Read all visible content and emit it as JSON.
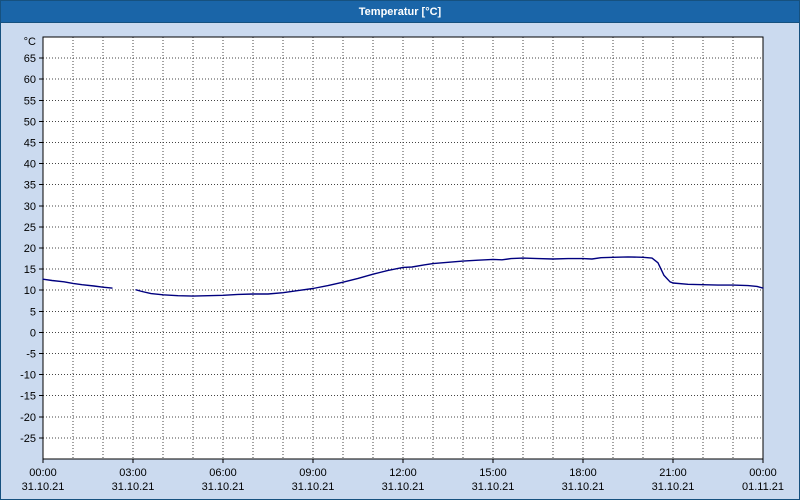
{
  "window": {
    "title": "Temperatur [°C]"
  },
  "colors": {
    "titlebar_bg": "#1a65a8",
    "titlebar_fg": "#ffffff",
    "panel_bg": "#cbdaef",
    "frame_border": "#16517f",
    "plot_bg": "#ffffff",
    "grid": "#444444",
    "axis": "#000000",
    "line": "#00007f",
    "tick_text": "#000000"
  },
  "chart_data": {
    "type": "line",
    "title": "Temperatur [°C]",
    "xlabel": "",
    "ylabel": "°C",
    "grid": true,
    "legend": "none",
    "ylim": [
      -30,
      70
    ],
    "xlim_hours": [
      0,
      24
    ],
    "yticks": [
      65,
      60,
      55,
      50,
      45,
      40,
      35,
      30,
      25,
      20,
      15,
      10,
      5,
      0,
      -5,
      -10,
      -15,
      -20,
      -25
    ],
    "xticks": [
      {
        "time": "00:00",
        "date": "31.10.21",
        "hour": 0
      },
      {
        "time": "03:00",
        "date": "31.10.21",
        "hour": 3
      },
      {
        "time": "06:00",
        "date": "31.10.21",
        "hour": 6
      },
      {
        "time": "09:00",
        "date": "31.10.21",
        "hour": 9
      },
      {
        "time": "12:00",
        "date": "31.10.21",
        "hour": 12
      },
      {
        "time": "15:00",
        "date": "31.10.21",
        "hour": 15
      },
      {
        "time": "18:00",
        "date": "31.10.21",
        "hour": 18
      },
      {
        "time": "21:00",
        "date": "31.10.21",
        "hour": 21
      },
      {
        "time": "00:00",
        "date": "01.11.21",
        "hour": 24
      }
    ],
    "series": [
      {
        "name": "Temperatur",
        "unit": "°C",
        "segments": [
          [
            [
              0.0,
              12.6
            ],
            [
              0.3,
              12.3
            ],
            [
              0.7,
              12.0
            ],
            [
              1.0,
              11.6
            ],
            [
              1.3,
              11.3
            ],
            [
              1.7,
              11.0
            ],
            [
              2.0,
              10.7
            ],
            [
              2.3,
              10.5
            ]
          ],
          [
            [
              3.1,
              10.1
            ],
            [
              3.3,
              9.7
            ],
            [
              3.6,
              9.2
            ],
            [
              4.0,
              8.9
            ],
            [
              4.5,
              8.7
            ],
            [
              5.0,
              8.6
            ],
            [
              5.5,
              8.7
            ],
            [
              6.0,
              8.8
            ],
            [
              6.5,
              9.0
            ],
            [
              7.0,
              9.1
            ],
            [
              7.5,
              9.1
            ],
            [
              8.0,
              9.4
            ],
            [
              8.5,
              9.9
            ],
            [
              9.0,
              10.4
            ],
            [
              9.5,
              11.1
            ],
            [
              10.0,
              11.9
            ],
            [
              10.5,
              12.8
            ],
            [
              11.0,
              13.8
            ],
            [
              11.5,
              14.7
            ],
            [
              12.0,
              15.4
            ],
            [
              12.3,
              15.5
            ],
            [
              12.7,
              16.0
            ],
            [
              13.0,
              16.3
            ],
            [
              13.5,
              16.6
            ],
            [
              14.0,
              16.9
            ],
            [
              14.5,
              17.1
            ],
            [
              15.0,
              17.3
            ],
            [
              15.3,
              17.2
            ],
            [
              15.6,
              17.5
            ],
            [
              16.0,
              17.6
            ],
            [
              16.5,
              17.5
            ],
            [
              17.0,
              17.4
            ],
            [
              17.5,
              17.5
            ],
            [
              18.0,
              17.5
            ],
            [
              18.3,
              17.4
            ],
            [
              18.6,
              17.7
            ],
            [
              19.0,
              17.8
            ],
            [
              19.5,
              17.9
            ],
            [
              20.0,
              17.8
            ],
            [
              20.3,
              17.6
            ],
            [
              20.5,
              16.5
            ],
            [
              20.7,
              13.5
            ],
            [
              20.9,
              12.0
            ],
            [
              21.0,
              11.7
            ],
            [
              21.5,
              11.4
            ],
            [
              22.0,
              11.3
            ],
            [
              22.5,
              11.2
            ],
            [
              23.0,
              11.2
            ],
            [
              23.5,
              11.1
            ],
            [
              23.8,
              10.9
            ],
            [
              24.0,
              10.5
            ]
          ]
        ]
      }
    ]
  }
}
